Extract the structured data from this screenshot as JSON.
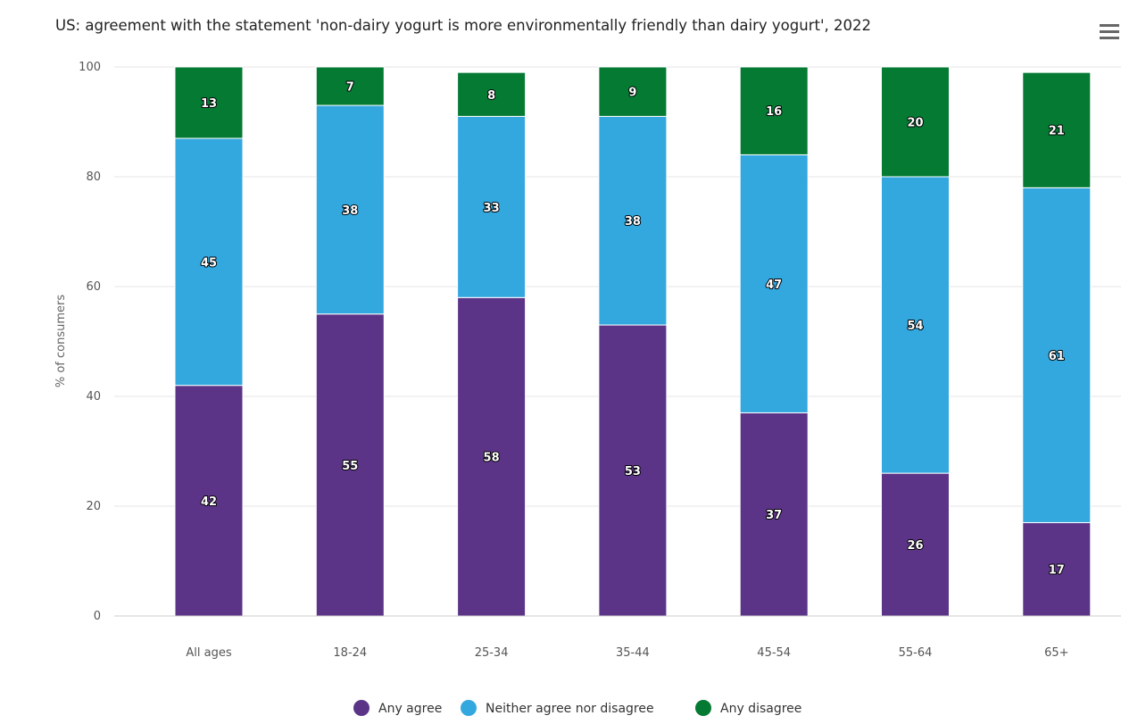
{
  "chart_data": {
    "type": "bar",
    "stacked": true,
    "title": "US: agreement with the statement 'non-dairy yogurt is more environmentally friendly than dairy yogurt', 2022",
    "xlabel": "",
    "ylabel": "% of consumers",
    "ylim": [
      0,
      100
    ],
    "yticks": [
      0,
      20,
      40,
      60,
      80,
      100
    ],
    "grid": true,
    "legend_position": "bottom",
    "categories": [
      "All ages",
      "18-24",
      "25-34",
      "35-44",
      "45-54",
      "55-64",
      "65+"
    ],
    "series": [
      {
        "name": "Any agree",
        "color": "#5c3487",
        "values": [
          42,
          55,
          58,
          53,
          37,
          26,
          17
        ]
      },
      {
        "name": "Neither agree nor disagree",
        "color": "#33a8df",
        "values": [
          45,
          38,
          33,
          38,
          47,
          54,
          61
        ]
      },
      {
        "name": "Any disagree",
        "color": "#047a33",
        "values": [
          13,
          7,
          8,
          9,
          16,
          20,
          21
        ]
      }
    ]
  },
  "menu_icon": "hamburger-menu-icon"
}
